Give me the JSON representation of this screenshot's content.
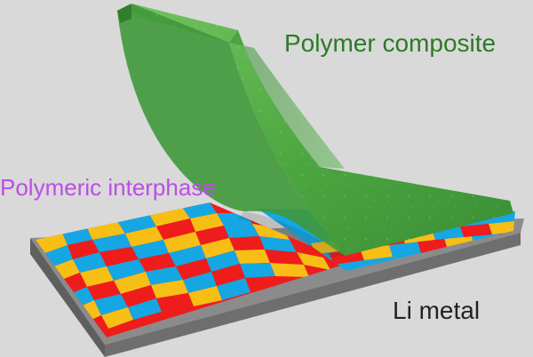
{
  "labels": {
    "polymer_composite": "Polymer composite",
    "polymeric_interphase": "Polymeric interphase",
    "li_metal": "Li metal"
  },
  "colors": {
    "background": "#d9d9d9",
    "polymer": "#4aa543",
    "polymer_dark": "#347d2f",
    "polymer_light": "#71c65d",
    "li_metal_top": "#8d8d8d",
    "li_metal_side": "#616161",
    "grain_red": "#ef1c1c",
    "grain_blue": "#15a7e3",
    "grain_yellow": "#f7bf16",
    "polymer_text": "#2c7a25",
    "interphase_text": "#bb4ee6",
    "li_text": "#222222"
  }
}
